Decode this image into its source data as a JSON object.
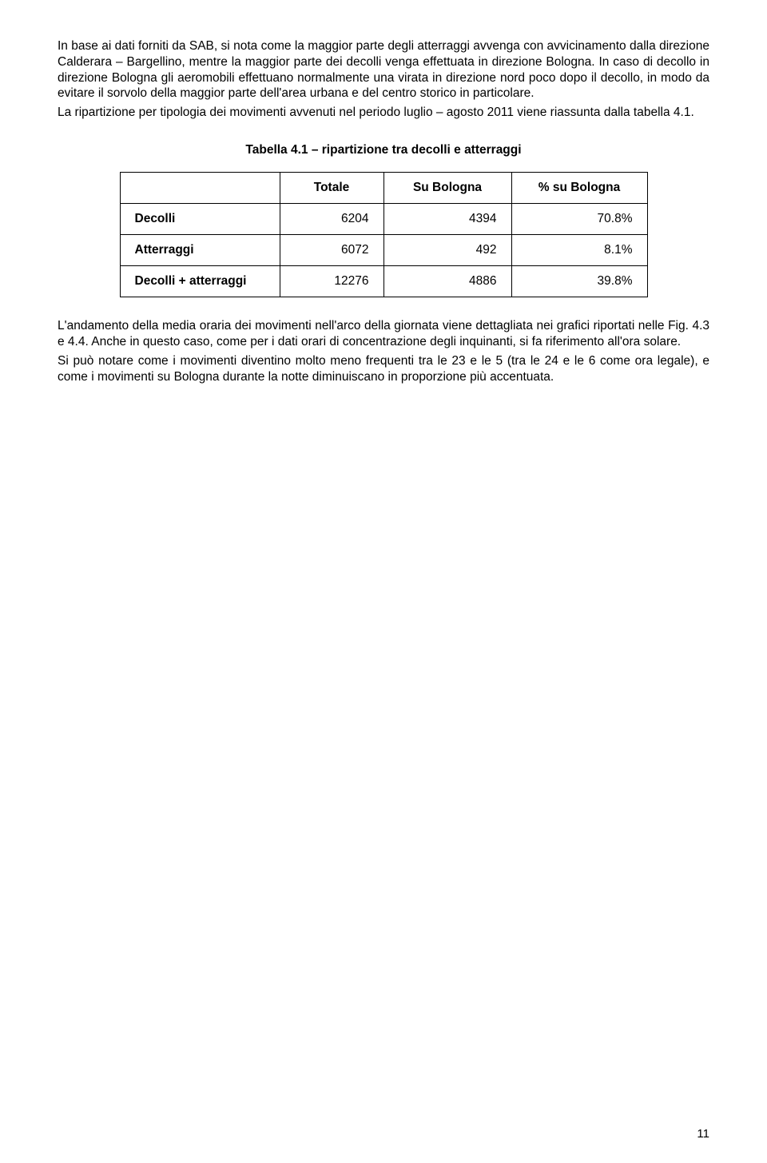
{
  "paragraphs": {
    "p1": "In base ai dati forniti da SAB, si nota come la maggior parte degli atterraggi avvenga con avvicinamento dalla direzione Calderara – Bargellino, mentre la maggior parte dei decolli venga effettuata in direzione Bologna. In caso di decollo in direzione Bologna gli aeromobili effettuano normalmente una virata in direzione nord poco dopo il decollo, in modo da evitare il sorvolo della maggior parte dell'area urbana e del centro storico in particolare.",
    "p2": "La ripartizione per tipologia dei movimenti avvenuti nel periodo luglio – agosto 2011 viene riassunta dalla tabella 4.1.",
    "p3": "L'andamento della media oraria dei movimenti nell'arco della giornata viene dettagliata nei grafici riportati nelle Fig. 4.3 e 4.4. Anche in questo caso, come per i dati orari di concentrazione degli inquinanti, si fa riferimento all'ora solare.",
    "p4": "Si può notare come i movimenti diventino molto meno frequenti tra le 23 e le 5 (tra le 24 e le 6 come ora legale), e come i movimenti su Bologna durante la notte diminuiscano in proporzione più accentuata."
  },
  "table": {
    "caption": "Tabella 4.1 – ripartizione tra decolli e atterraggi",
    "headers": {
      "blank": "",
      "totale": "Totale",
      "su_bologna": "Su Bologna",
      "pct_bologna": "% su Bologna"
    },
    "rows": [
      {
        "label": "Decolli",
        "totale": "6204",
        "su_bologna": "4394",
        "pct": "70.8%"
      },
      {
        "label": "Atterraggi",
        "totale": "6072",
        "su_bologna": "492",
        "pct": "8.1%"
      },
      {
        "label": "Decolli + atterraggi",
        "totale": "12276",
        "su_bologna": "4886",
        "pct": "39.8%"
      }
    ]
  },
  "page_number": "11"
}
